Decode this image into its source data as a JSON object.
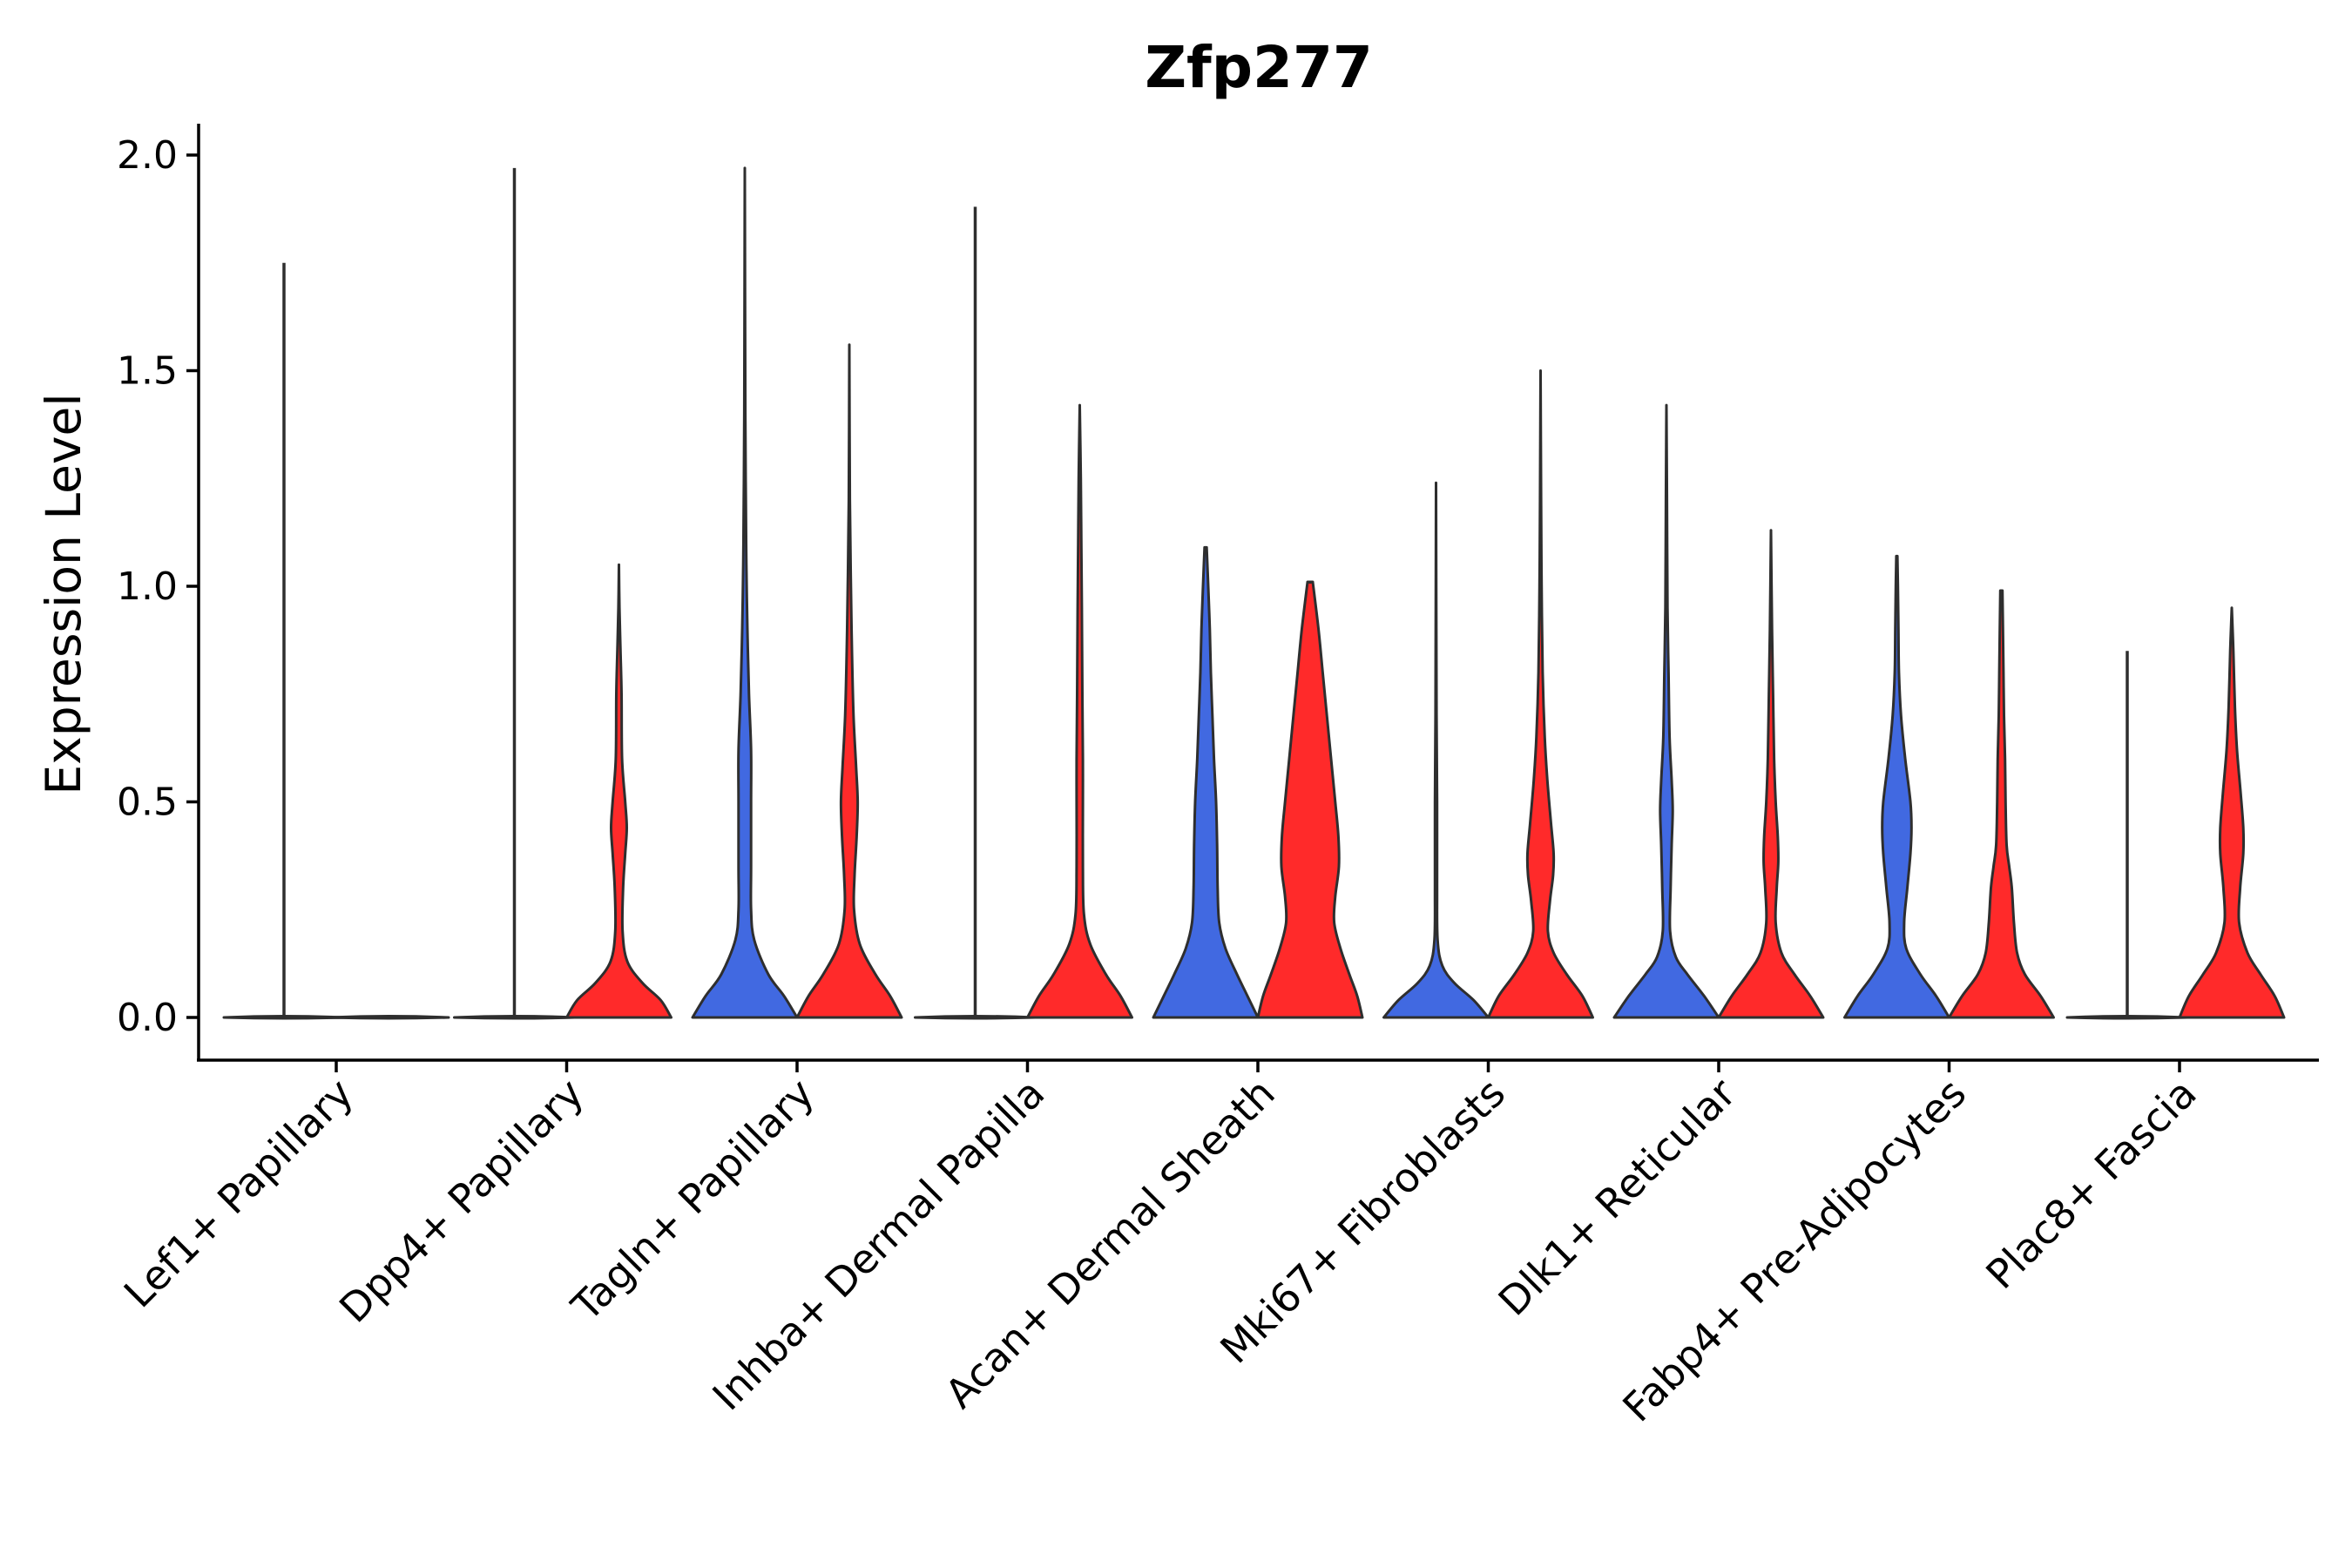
{
  "chart_data": {
    "type": "violin",
    "title": "Zfp277",
    "xlabel": "",
    "ylabel": "Expression Level",
    "ylim": [
      -0.1,
      2.08
    ],
    "yticks": [
      0.0,
      0.5,
      1.0,
      1.5,
      2.0
    ],
    "ytick_labels": [
      "0.0",
      "0.5",
      "1.0",
      "1.5",
      "2.0"
    ],
    "grid": false,
    "legend": "none",
    "colors": {
      "blue": "#4169e1",
      "red": "#ff2a2a",
      "none": "#ffffff"
    },
    "categories": [
      "Lef1+ Papillary",
      "Dpp4+ Papillary",
      "Tagln+ Papillary",
      "Inhba+ Dermal Papilla",
      "Acan+ Dermal Sheath",
      "Mki67+ Fibroblasts",
      "Dlk1+ Reticular",
      "Fabp4+ Pre-Adipocytes",
      "Plac8+ Fascia"
    ],
    "violins": [
      {
        "category": 0,
        "side": "left",
        "fill": "none",
        "max": 1.75,
        "profile": [
          [
            0,
            1.0
          ],
          [
            0.01,
            0.0
          ],
          [
            1.75,
            0.0
          ]
        ]
      },
      {
        "category": 0,
        "side": "right",
        "fill": "none",
        "max": 0.0,
        "profile": [
          [
            0,
            1.0
          ]
        ]
      },
      {
        "category": 1,
        "side": "left",
        "fill": "none",
        "max": 1.97,
        "profile": [
          [
            0,
            1.0
          ],
          [
            0.01,
            0.0
          ],
          [
            1.97,
            0.0
          ]
        ]
      },
      {
        "category": 1,
        "side": "right",
        "fill": "red",
        "max": 1.05,
        "profile": [
          [
            0,
            1.0
          ],
          [
            0.04,
            0.8
          ],
          [
            0.08,
            0.45
          ],
          [
            0.13,
            0.16
          ],
          [
            0.2,
            0.07
          ],
          [
            0.3,
            0.08
          ],
          [
            0.38,
            0.12
          ],
          [
            0.44,
            0.15
          ],
          [
            0.5,
            0.12
          ],
          [
            0.6,
            0.06
          ],
          [
            0.75,
            0.05
          ],
          [
            0.85,
            0.03
          ],
          [
            0.95,
            0.01
          ],
          [
            1.05,
            0.0
          ]
        ]
      },
      {
        "category": 2,
        "side": "left",
        "fill": "blue",
        "max": 1.97,
        "profile": [
          [
            0,
            1.0
          ],
          [
            0.05,
            0.75
          ],
          [
            0.1,
            0.45
          ],
          [
            0.18,
            0.18
          ],
          [
            0.25,
            0.12
          ],
          [
            0.35,
            0.12
          ],
          [
            0.5,
            0.12
          ],
          [
            0.62,
            0.12
          ],
          [
            0.75,
            0.08
          ],
          [
            0.9,
            0.05
          ],
          [
            1.05,
            0.03
          ],
          [
            1.2,
            0.02
          ],
          [
            1.4,
            0.01
          ],
          [
            1.97,
            0.0
          ]
        ]
      },
      {
        "category": 2,
        "side": "right",
        "fill": "red",
        "max": 1.56,
        "profile": [
          [
            0,
            1.0
          ],
          [
            0.05,
            0.78
          ],
          [
            0.1,
            0.5
          ],
          [
            0.17,
            0.2
          ],
          [
            0.25,
            0.09
          ],
          [
            0.33,
            0.1
          ],
          [
            0.42,
            0.14
          ],
          [
            0.5,
            0.16
          ],
          [
            0.58,
            0.13
          ],
          [
            0.7,
            0.08
          ],
          [
            0.85,
            0.05
          ],
          [
            1.0,
            0.03
          ],
          [
            1.2,
            0.01
          ],
          [
            1.56,
            0.0
          ]
        ]
      },
      {
        "category": 3,
        "side": "left",
        "fill": "none",
        "max": 1.88,
        "profile": [
          [
            0,
            1.0
          ],
          [
            0.01,
            0.0
          ],
          [
            1.88,
            0.0
          ]
        ]
      },
      {
        "category": 3,
        "side": "right",
        "fill": "red",
        "max": 1.42,
        "profile": [
          [
            0,
            1.0
          ],
          [
            0.05,
            0.78
          ],
          [
            0.1,
            0.5
          ],
          [
            0.17,
            0.2
          ],
          [
            0.24,
            0.08
          ],
          [
            0.35,
            0.06
          ],
          [
            0.5,
            0.06
          ],
          [
            0.6,
            0.06
          ],
          [
            0.75,
            0.05
          ],
          [
            0.95,
            0.04
          ],
          [
            1.1,
            0.03
          ],
          [
            1.25,
            0.02
          ],
          [
            1.42,
            0.0
          ]
        ]
      },
      {
        "category": 4,
        "side": "left",
        "fill": "blue",
        "max": 1.09,
        "profile": [
          [
            0,
            1.0
          ],
          [
            0.05,
            0.8
          ],
          [
            0.1,
            0.6
          ],
          [
            0.16,
            0.38
          ],
          [
            0.22,
            0.26
          ],
          [
            0.3,
            0.23
          ],
          [
            0.4,
            0.22
          ],
          [
            0.5,
            0.2
          ],
          [
            0.6,
            0.16
          ],
          [
            0.7,
            0.13
          ],
          [
            0.8,
            0.1
          ],
          [
            0.9,
            0.08
          ],
          [
            1.0,
            0.05
          ],
          [
            1.09,
            0.02
          ]
        ]
      },
      {
        "category": 4,
        "side": "right",
        "fill": "red",
        "max": 1.01,
        "profile": [
          [
            0,
            1.0
          ],
          [
            0.05,
            0.9
          ],
          [
            0.1,
            0.75
          ],
          [
            0.16,
            0.58
          ],
          [
            0.22,
            0.46
          ],
          [
            0.28,
            0.48
          ],
          [
            0.35,
            0.55
          ],
          [
            0.42,
            0.54
          ],
          [
            0.5,
            0.48
          ],
          [
            0.6,
            0.4
          ],
          [
            0.7,
            0.32
          ],
          [
            0.8,
            0.24
          ],
          [
            0.9,
            0.16
          ],
          [
            1.01,
            0.05
          ]
        ]
      },
      {
        "category": 5,
        "side": "left",
        "fill": "blue",
        "max": 1.24,
        "profile": [
          [
            0,
            1.0
          ],
          [
            0.04,
            0.72
          ],
          [
            0.08,
            0.35
          ],
          [
            0.12,
            0.12
          ],
          [
            0.18,
            0.03
          ],
          [
            0.3,
            0.02
          ],
          [
            0.5,
            0.02
          ],
          [
            0.7,
            0.01
          ],
          [
            1.24,
            0.0
          ]
        ]
      },
      {
        "category": 5,
        "side": "right",
        "fill": "red",
        "max": 1.5,
        "profile": [
          [
            0,
            1.0
          ],
          [
            0.05,
            0.8
          ],
          [
            0.1,
            0.5
          ],
          [
            0.15,
            0.25
          ],
          [
            0.2,
            0.14
          ],
          [
            0.27,
            0.18
          ],
          [
            0.33,
            0.24
          ],
          [
            0.38,
            0.25
          ],
          [
            0.45,
            0.2
          ],
          [
            0.55,
            0.13
          ],
          [
            0.65,
            0.08
          ],
          [
            0.8,
            0.04
          ],
          [
            1.0,
            0.02
          ],
          [
            1.2,
            0.01
          ],
          [
            1.5,
            0.0
          ]
        ]
      },
      {
        "category": 6,
        "side": "left",
        "fill": "blue",
        "max": 1.42,
        "profile": [
          [
            0,
            1.0
          ],
          [
            0.05,
            0.72
          ],
          [
            0.1,
            0.4
          ],
          [
            0.14,
            0.18
          ],
          [
            0.2,
            0.07
          ],
          [
            0.3,
            0.08
          ],
          [
            0.4,
            0.1
          ],
          [
            0.48,
            0.12
          ],
          [
            0.55,
            0.1
          ],
          [
            0.65,
            0.06
          ],
          [
            0.8,
            0.04
          ],
          [
            0.95,
            0.02
          ],
          [
            1.2,
            0.01
          ],
          [
            1.42,
            0.0
          ]
        ]
      },
      {
        "category": 6,
        "side": "right",
        "fill": "red",
        "max": 1.13,
        "profile": [
          [
            0,
            1.0
          ],
          [
            0.05,
            0.75
          ],
          [
            0.1,
            0.45
          ],
          [
            0.15,
            0.2
          ],
          [
            0.22,
            0.09
          ],
          [
            0.3,
            0.11
          ],
          [
            0.36,
            0.14
          ],
          [
            0.42,
            0.13
          ],
          [
            0.5,
            0.09
          ],
          [
            0.6,
            0.06
          ],
          [
            0.75,
            0.04
          ],
          [
            0.9,
            0.02
          ],
          [
            1.13,
            0.0
          ]
        ]
      },
      {
        "category": 7,
        "side": "left",
        "fill": "blue",
        "max": 1.07,
        "profile": [
          [
            0,
            1.0
          ],
          [
            0.05,
            0.75
          ],
          [
            0.1,
            0.45
          ],
          [
            0.16,
            0.18
          ],
          [
            0.22,
            0.14
          ],
          [
            0.3,
            0.2
          ],
          [
            0.38,
            0.26
          ],
          [
            0.44,
            0.28
          ],
          [
            0.5,
            0.26
          ],
          [
            0.6,
            0.16
          ],
          [
            0.7,
            0.08
          ],
          [
            0.8,
            0.04
          ],
          [
            0.9,
            0.03
          ],
          [
            1.0,
            0.02
          ],
          [
            1.07,
            0.01
          ]
        ]
      },
      {
        "category": 7,
        "side": "right",
        "fill": "red",
        "max": 0.99,
        "profile": [
          [
            0,
            1.0
          ],
          [
            0.05,
            0.75
          ],
          [
            0.1,
            0.45
          ],
          [
            0.15,
            0.3
          ],
          [
            0.22,
            0.24
          ],
          [
            0.3,
            0.2
          ],
          [
            0.35,
            0.15
          ],
          [
            0.4,
            0.1
          ],
          [
            0.5,
            0.08
          ],
          [
            0.6,
            0.07
          ],
          [
            0.7,
            0.05
          ],
          [
            0.8,
            0.04
          ],
          [
            0.9,
            0.03
          ],
          [
            0.99,
            0.02
          ]
        ]
      },
      {
        "category": 8,
        "side": "left",
        "fill": "none",
        "max": 0.85,
        "profile": [
          [
            0,
            1.0
          ],
          [
            0.01,
            0.0
          ],
          [
            0.85,
            0.0
          ]
        ]
      },
      {
        "category": 8,
        "side": "right",
        "fill": "red",
        "max": 0.95,
        "profile": [
          [
            0,
            1.0
          ],
          [
            0.05,
            0.82
          ],
          [
            0.1,
            0.55
          ],
          [
            0.15,
            0.3
          ],
          [
            0.22,
            0.14
          ],
          [
            0.3,
            0.16
          ],
          [
            0.38,
            0.22
          ],
          [
            0.44,
            0.22
          ],
          [
            0.52,
            0.17
          ],
          [
            0.62,
            0.1
          ],
          [
            0.72,
            0.06
          ],
          [
            0.85,
            0.03
          ],
          [
            0.95,
            0.0
          ]
        ]
      }
    ]
  }
}
